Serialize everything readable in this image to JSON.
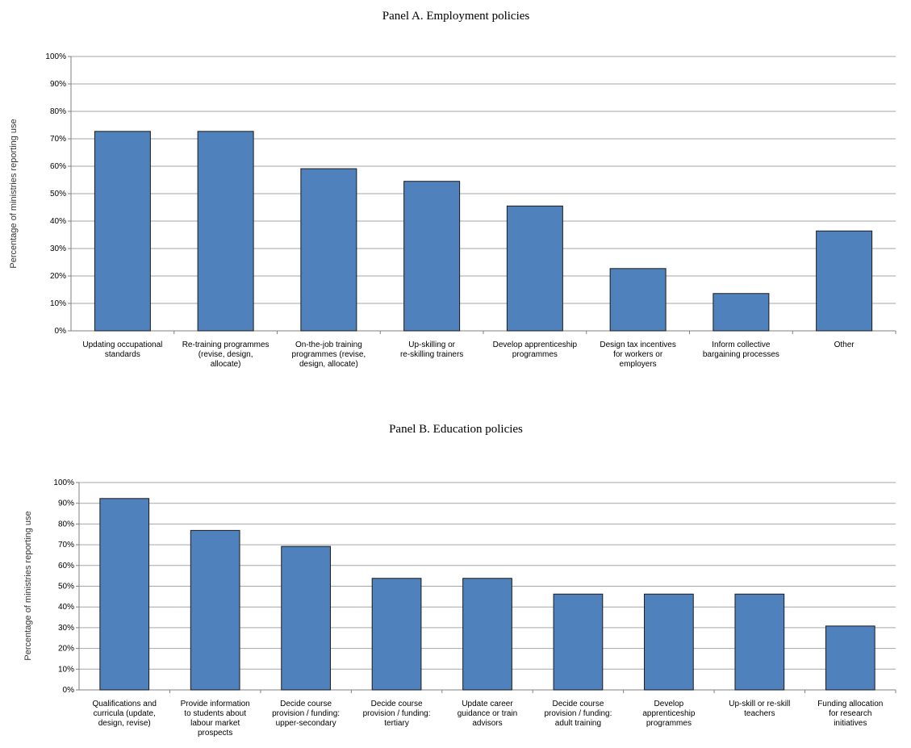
{
  "chart_data": [
    {
      "type": "bar",
      "title": "Panel A. Employment policies",
      "y_label": "Percentage of ministries reporting use",
      "categories": [
        "Updating occupational standards",
        "Re-training programmes (revise, design, allocate)",
        "On-the-job training programmes (revise, design, allocate)",
        "Up-skilling or re-skilling trainers",
        "Develop apprenticeship programmes",
        "Design tax incentives for workers or employers",
        "Inform collective bargaining processes",
        "Other"
      ],
      "values": [
        72.7,
        72.7,
        59.1,
        54.5,
        45.5,
        22.7,
        13.6,
        36.4
      ],
      "color": "#4f81bd",
      "ylim": [
        0,
        100
      ],
      "yticks": [
        {
          "value": 0,
          "label": "0%"
        },
        {
          "value": 10,
          "label": "10%"
        },
        {
          "value": 20,
          "label": "20%"
        },
        {
          "value": 30,
          "label": "30%"
        },
        {
          "value": 40,
          "label": "40%"
        },
        {
          "value": 50,
          "label": "50%"
        },
        {
          "value": 60,
          "label": "60%"
        },
        {
          "value": 70,
          "label": "70%"
        },
        {
          "value": 80,
          "label": "80%"
        },
        {
          "value": 90,
          "label": "90%"
        },
        {
          "value": 100,
          "label": "100%"
        }
      ],
      "grid": true
    },
    {
      "type": "bar",
      "title": "Panel B. Education policies",
      "y_label": "Percentage of ministries reporting use",
      "categories": [
        "Qualifications and curricula (update, design, revise)",
        "Provide information to students about labour market prospects",
        "Decide course provision / funding: upper-secondary",
        "Decide course provision / funding: tertiary",
        "Update career guidance or train advisors",
        "Decide course provision / funding: adult training",
        "Develop apprenticeship programmes",
        "Up-skill or re-skill teachers",
        "Funding allocation for research initiatives"
      ],
      "values": [
        92.3,
        76.9,
        69.2,
        53.8,
        53.8,
        46.2,
        46.2,
        46.2,
        30.8
      ],
      "color": "#4f81bd",
      "ylim": [
        0,
        100
      ],
      "yticks": [
        {
          "value": 0,
          "label": "0%"
        },
        {
          "value": 10,
          "label": "10%"
        },
        {
          "value": 20,
          "label": "20%"
        },
        {
          "value": 30,
          "label": "30%"
        },
        {
          "value": 40,
          "label": "40%"
        },
        {
          "value": 50,
          "label": "50%"
        },
        {
          "value": 60,
          "label": "60%"
        },
        {
          "value": 70,
          "label": "70%"
        },
        {
          "value": 80,
          "label": "80%"
        },
        {
          "value": 90,
          "label": "90%"
        },
        {
          "value": 100,
          "label": "100%"
        }
      ],
      "grid": true
    }
  ]
}
